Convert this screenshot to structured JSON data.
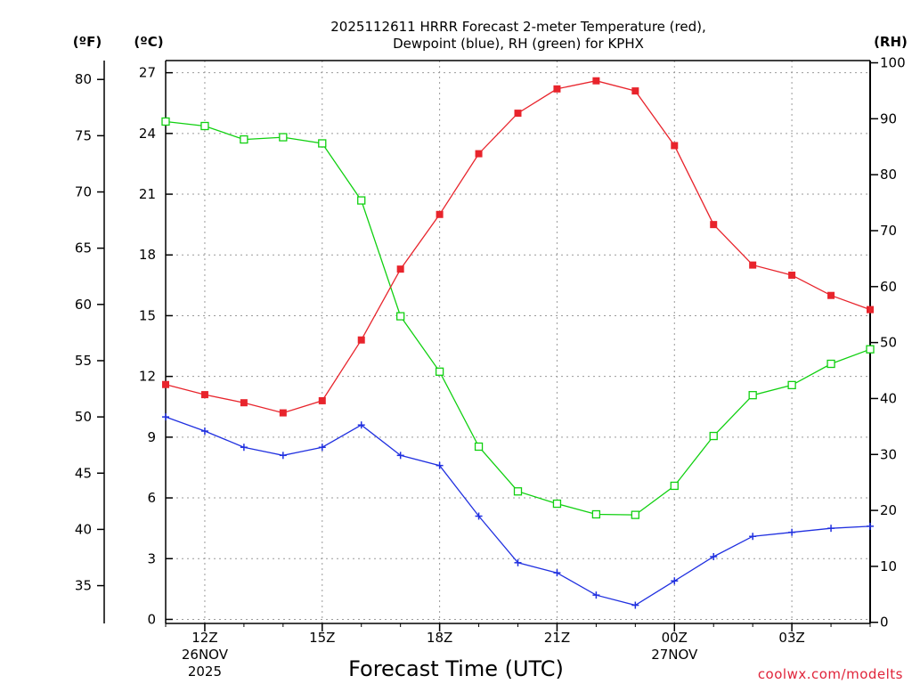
{
  "chart_data": {
    "type": "line",
    "title_line1": "2025112611 HRRR Forecast 2-meter Temperature (red),",
    "title_line2": "Dewpoint (blue), RH (green) for KPHX",
    "xlabel": "Forecast Time (UTC)",
    "credit": "coolwx.com/modelts",
    "units": {
      "fahrenheit": "(ºF)",
      "celsius": "(ºC)",
      "rh": "(RH)"
    },
    "x_hours": [
      11,
      12,
      13,
      14,
      15,
      16,
      17,
      18,
      19,
      20,
      21,
      22,
      23,
      24,
      25,
      26,
      27,
      28,
      29
    ],
    "xlim": [
      11,
      29
    ],
    "x_ticks": [
      {
        "hour": 12,
        "lines": [
          "12Z",
          "26NOV",
          "2025"
        ]
      },
      {
        "hour": 15,
        "lines": [
          "15Z"
        ]
      },
      {
        "hour": 18,
        "lines": [
          "18Z"
        ]
      },
      {
        "hour": 21,
        "lines": [
          "21Z"
        ]
      },
      {
        "hour": 24,
        "lines": [
          "00Z",
          "27NOV"
        ]
      },
      {
        "hour": 27,
        "lines": [
          "03Z"
        ]
      }
    ],
    "celsius_ticks": [
      "0",
      "3",
      "6",
      "9",
      "12",
      "15",
      "18",
      "21",
      "24",
      "27"
    ],
    "fahrenheit_ticks": [
      "35",
      "40",
      "45",
      "50",
      "55",
      "60",
      "65",
      "70",
      "75",
      "80"
    ],
    "rh_ticks": [
      "0",
      "10",
      "20",
      "30",
      "40",
      "50",
      "60",
      "70",
      "80",
      "90",
      "100"
    ],
    "ylim_celsius": [
      -0.2,
      27.6
    ],
    "ylim_rh": [
      -0.2,
      100.4
    ],
    "colors": {
      "temperature": "#e8242c",
      "dewpoint": "#2030e0",
      "rh": "#10d010"
    },
    "series": [
      {
        "name": "Temperature (°C)",
        "axis": "celsius",
        "marker": "square-filled",
        "values": [
          11.6,
          11.1,
          10.7,
          10.2,
          10.8,
          13.8,
          17.3,
          20.0,
          23.0,
          25.0,
          26.2,
          26.6,
          26.1,
          23.4,
          19.5,
          17.5,
          17.0,
          16.0,
          15.3
        ]
      },
      {
        "name": "Dewpoint (°C)",
        "axis": "celsius",
        "marker": "plus",
        "values": [
          10.0,
          9.3,
          8.5,
          8.1,
          8.5,
          9.6,
          8.1,
          7.6,
          5.1,
          2.8,
          2.3,
          1.2,
          0.7,
          1.9,
          3.1,
          4.1,
          4.3,
          4.5,
          4.6
        ]
      },
      {
        "name": "RH (%)",
        "axis": "rh",
        "marker": "square-open",
        "values": [
          89.5,
          88.7,
          86.3,
          86.7,
          85.6,
          75.4,
          54.7,
          44.8,
          31.4,
          23.4,
          21.2,
          19.3,
          19.2,
          24.4,
          33.3,
          40.6,
          42.4,
          46.2,
          48.8
        ]
      }
    ]
  }
}
